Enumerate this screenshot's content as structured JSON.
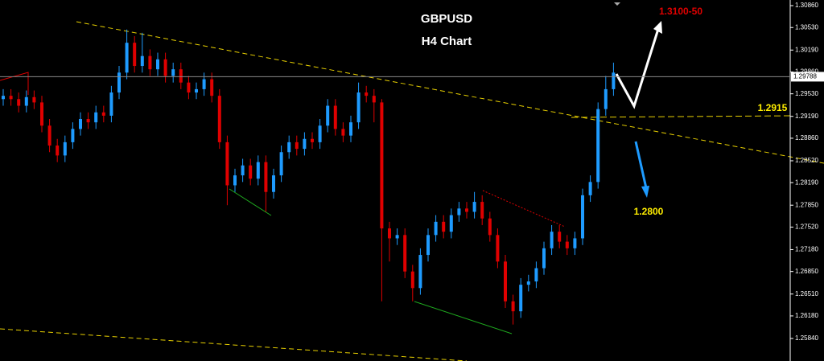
{
  "chart_data": {
    "type": "candlestick",
    "title": "GBPUSD",
    "subtitle": "H4 Chart",
    "up_color": "#1e9bff",
    "down_color": "#e00000",
    "ylim": [
      1.255,
      1.30945
    ],
    "yticks": [
      {
        "value": 1.3086,
        "label": "1.30860"
      },
      {
        "value": 1.3053,
        "label": "1.30530"
      },
      {
        "value": 1.3019,
        "label": "1.30190"
      },
      {
        "value": 1.2986,
        "label": "1.29860"
      },
      {
        "value": 1.2953,
        "label": "1.29530"
      },
      {
        "value": 1.2919,
        "label": "1.29190"
      },
      {
        "value": 1.2886,
        "label": "1.28860"
      },
      {
        "value": 1.2852,
        "label": "1.28520"
      },
      {
        "value": 1.2819,
        "label": "1.28190"
      },
      {
        "value": 1.2785,
        "label": "1.27850"
      },
      {
        "value": 1.2752,
        "label": "1.27520"
      },
      {
        "value": 1.2718,
        "label": "1.27180"
      },
      {
        "value": 1.2685,
        "label": "1.26850"
      },
      {
        "value": 1.2651,
        "label": "1.26510"
      },
      {
        "value": 1.2618,
        "label": "1.26180"
      },
      {
        "value": 1.2584,
        "label": "1.25840"
      }
    ],
    "current_price": 1.29788,
    "annotations": [
      "1.3100-50",
      "1.2915",
      "1.2800"
    ],
    "open": [
      1.2945,
      1.295,
      1.2945,
      1.2935,
      1.2948,
      1.294,
      1.2905,
      1.2875,
      1.286,
      1.288,
      1.29,
      1.2915,
      1.291,
      1.2925,
      1.292,
      1.2955,
      1.2985,
      1.303,
      1.2995,
      1.301,
      1.299,
      1.3005,
      1.298,
      1.299,
      1.297,
      1.2955,
      1.296,
      1.2975,
      1.295,
      1.288,
      1.2815,
      1.283,
      1.2845,
      1.2825,
      1.285,
      1.2805,
      1.283,
      1.2865,
      1.288,
      1.287,
      1.2885,
      1.288,
      1.2905,
      1.2935,
      1.29,
      1.289,
      1.291,
      1.2955,
      1.295,
      1.294,
      1.275,
      1.2735,
      1.274,
      1.2685,
      1.266,
      1.271,
      1.274,
      1.276,
      1.2745,
      1.277,
      1.278,
      1.2775,
      1.279,
      1.2765,
      1.274,
      1.27,
      1.264,
      1.2625,
      1.2665,
      1.267,
      1.269,
      1.272,
      1.2745,
      1.273,
      1.272,
      1.2735,
      1.28,
      1.282,
      1.293,
      1.296
    ],
    "high": [
      1.296,
      1.296,
      1.2955,
      1.2958,
      1.2958,
      1.295,
      1.2915,
      1.2885,
      1.289,
      1.291,
      1.2925,
      1.2925,
      1.2935,
      1.2935,
      1.2965,
      1.2995,
      1.305,
      1.304,
      1.3045,
      1.302,
      1.3015,
      1.3015,
      1.3,
      1.3,
      1.298,
      1.297,
      1.2985,
      1.2985,
      1.296,
      1.289,
      1.284,
      1.2855,
      1.2855,
      1.286,
      1.286,
      1.284,
      1.2875,
      1.289,
      1.289,
      1.2895,
      1.2895,
      1.2915,
      1.2945,
      1.2945,
      1.291,
      1.292,
      1.297,
      1.2965,
      1.296,
      1.2945,
      1.276,
      1.275,
      1.275,
      1.2695,
      1.272,
      1.275,
      1.277,
      1.277,
      1.278,
      1.279,
      1.279,
      1.2805,
      1.28,
      1.2775,
      1.275,
      1.271,
      1.265,
      1.2675,
      1.268,
      1.27,
      1.273,
      1.2755,
      1.2755,
      1.274,
      1.2745,
      1.281,
      1.283,
      1.294,
      1.298,
      1.3
    ],
    "low": [
      1.2935,
      1.2935,
      1.2925,
      1.2925,
      1.293,
      1.2895,
      1.2865,
      1.285,
      1.285,
      1.287,
      1.289,
      1.29,
      1.29,
      1.291,
      1.291,
      1.2945,
      1.2975,
      1.2985,
      1.2985,
      1.298,
      1.298,
      1.297,
      1.297,
      1.296,
      1.2945,
      1.2945,
      1.295,
      1.294,
      1.287,
      1.2785,
      1.2805,
      1.282,
      1.2815,
      1.2815,
      1.2775,
      1.2795,
      1.282,
      1.2855,
      1.286,
      1.286,
      1.287,
      1.287,
      1.2895,
      1.289,
      1.288,
      1.288,
      1.29,
      1.294,
      1.291,
      1.264,
      1.27,
      1.2725,
      1.2675,
      1.264,
      1.265,
      1.27,
      1.273,
      1.2735,
      1.2735,
      1.276,
      1.2765,
      1.2765,
      1.2755,
      1.273,
      1.269,
      1.263,
      1.2605,
      1.2615,
      1.2655,
      1.266,
      1.268,
      1.271,
      1.272,
      1.271,
      1.271,
      1.2725,
      1.279,
      1.281,
      1.292,
      1.295
    ],
    "close": [
      1.295,
      1.2945,
      1.2935,
      1.2948,
      1.294,
      1.2905,
      1.2875,
      1.286,
      1.288,
      1.29,
      1.2915,
      1.291,
      1.2925,
      1.292,
      1.2955,
      1.2985,
      1.303,
      1.2995,
      1.301,
      1.299,
      1.3005,
      1.298,
      1.299,
      1.297,
      1.2955,
      1.296,
      1.2975,
      1.295,
      1.288,
      1.2815,
      1.283,
      1.2845,
      1.2825,
      1.285,
      1.2805,
      1.283,
      1.2865,
      1.288,
      1.287,
      1.2885,
      1.288,
      1.2905,
      1.2935,
      1.29,
      1.289,
      1.291,
      1.2955,
      1.295,
      1.294,
      1.275,
      1.2735,
      1.274,
      1.2685,
      1.266,
      1.271,
      1.274,
      1.276,
      1.2745,
      1.277,
      1.278,
      1.2775,
      1.279,
      1.2765,
      1.274,
      1.27,
      1.264,
      1.2625,
      1.2665,
      1.267,
      1.269,
      1.272,
      1.2745,
      1.273,
      1.272,
      1.2735,
      1.28,
      1.282,
      1.293,
      1.296,
      1.2985
    ]
  }
}
